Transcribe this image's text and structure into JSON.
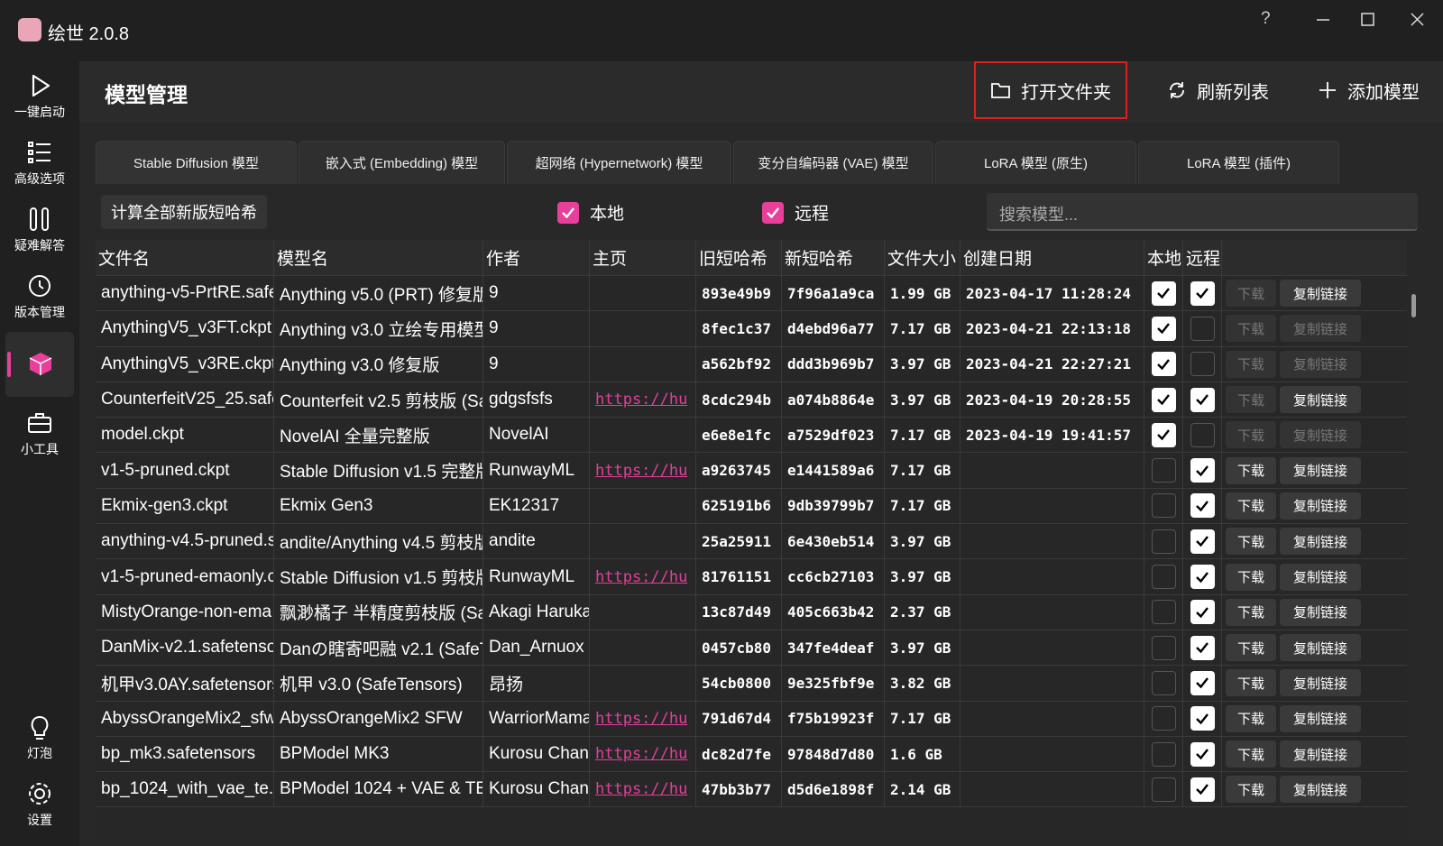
{
  "app": {
    "title": "绘世 2.0.8",
    "help": "?"
  },
  "sidebar": {
    "top": [
      "一键启动",
      "高级选项",
      "疑难解答",
      "版本管理"
    ],
    "tools": "小工具",
    "bottom": [
      "灯泡",
      "设置"
    ]
  },
  "header": {
    "title": "模型管理",
    "buttons": [
      "打开文件夹",
      "刷新列表",
      "添加模型"
    ]
  },
  "tabs": [
    "Stable Diffusion 模型",
    "嵌入式 (Embedding) 模型",
    "超网络 (Hypernetwork) 模型",
    "变分自编码器 (VAE) 模型",
    "LoRA 模型 (原生)",
    "LoRA 模型 (插件)"
  ],
  "selected_tab": 0,
  "toolbar": {
    "hash_button": "计算全部新版短哈希",
    "filters": [
      {
        "label": "本地",
        "checked": true
      },
      {
        "label": "远程",
        "checked": true
      }
    ],
    "search_placeholder": "搜索模型..."
  },
  "table": {
    "columns": [
      "文件名",
      "模型名",
      "作者",
      "主页",
      "旧短哈希",
      "新短哈希",
      "文件大小",
      "创建日期",
      "本地",
      "远程"
    ],
    "actions": [
      "下载",
      "复制链接"
    ],
    "rows": [
      {
        "file": "anything-v5-PrtRE.safe",
        "model": "Anything v5.0 (PRT) 修复版",
        "author": "9",
        "home": null,
        "old": "893e49b9",
        "new": "7f96a1a9ca",
        "size": "1.99 GB",
        "date": "2023-04-17 11:28:24",
        "local": true,
        "remote": true
      },
      {
        "file": "AnythingV5_v3FT.ckpt",
        "model": "Anything v3.0 立绘专用模型",
        "author": "9",
        "home": null,
        "old": "8fec1c37",
        "new": "d4ebd96a77",
        "size": "7.17 GB",
        "date": "2023-04-21 22:13:18",
        "local": true,
        "remote": false
      },
      {
        "file": "AnythingV5_v3RE.ckpt",
        "model": "Anything v3.0 修复版",
        "author": "9",
        "home": null,
        "old": "a562bf92",
        "new": "ddd3b969b7",
        "size": "3.97 GB",
        "date": "2023-04-21 22:27:21",
        "local": true,
        "remote": false
      },
      {
        "file": "CounterfeitV25_25.safe",
        "model": "Counterfeit v2.5 剪枝版 (Saf",
        "author": "gdgsfsfs",
        "home": "https://hu",
        "old": "8cdc294b",
        "new": "a074b8864e",
        "size": "3.97 GB",
        "date": "2023-04-19 20:28:55",
        "local": true,
        "remote": true
      },
      {
        "file": "model.ckpt",
        "model": "NovelAI 全量完整版",
        "author": "NovelAI",
        "home": null,
        "old": "e6e8e1fc",
        "new": "a7529df023",
        "size": "7.17 GB",
        "date": "2023-04-19 19:41:57",
        "local": true,
        "remote": false
      },
      {
        "file": "v1-5-pruned.ckpt",
        "model": "Stable Diffusion v1.5 完整版",
        "author": "RunwayML",
        "home": "https://hu",
        "old": "a9263745",
        "new": "e1441589a6",
        "size": "7.17 GB",
        "date": null,
        "local": false,
        "remote": true
      },
      {
        "file": "Ekmix-gen3.ckpt",
        "model": "Ekmix Gen3",
        "author": "EK12317",
        "home": null,
        "old": "625191b6",
        "new": "9db39799b7",
        "size": "7.17 GB",
        "date": null,
        "local": false,
        "remote": true
      },
      {
        "file": "anything-v4.5-pruned.s",
        "model": "andite/Anything v4.5 剪枝版",
        "author": "andite",
        "home": null,
        "old": "25a25911",
        "new": "6e430eb514",
        "size": "3.97 GB",
        "date": null,
        "local": false,
        "remote": true
      },
      {
        "file": "v1-5-pruned-emaonly.c",
        "model": "Stable Diffusion v1.5 剪枝版",
        "author": "RunwayML",
        "home": "https://hu",
        "old": "81761151",
        "new": "cc6cb27103",
        "size": "3.97 GB",
        "date": null,
        "local": false,
        "remote": true
      },
      {
        "file": "MistyOrange-non-ema",
        "model": "飘渺橘子 半精度剪枝版 (Safe",
        "author": "Akagi Haruka",
        "home": null,
        "old": "13c87d49",
        "new": "405c663b42",
        "size": "2.37 GB",
        "date": null,
        "local": false,
        "remote": true
      },
      {
        "file": "DanMix-v2.1.safetensor",
        "model": "Danの瞎寄吧融 v2.1 (SafeTe",
        "author": "Dan_Arnuox",
        "home": null,
        "old": "0457cb80",
        "new": "347fe4deaf",
        "size": "3.97 GB",
        "date": null,
        "local": false,
        "remote": true
      },
      {
        "file": "机甲v3.0AY.safetensors",
        "model": "机甲 v3.0 (SafeTensors)",
        "author": "昂扬",
        "home": null,
        "old": "54cb0800",
        "new": "9e325fbf9e",
        "size": "3.82 GB",
        "date": null,
        "local": false,
        "remote": true
      },
      {
        "file": "AbyssOrangeMix2_sfw.",
        "model": "AbyssOrangeMix2 SFW",
        "author": "WarriorMama",
        "home": "https://hu",
        "old": "791d67d4",
        "new": "f75b19923f",
        "size": "7.17 GB",
        "date": null,
        "local": false,
        "remote": true
      },
      {
        "file": "bp_mk3.safetensors",
        "model": "BPModel MK3",
        "author": "Kurosu Chan",
        "home": "https://hu",
        "old": "dc82d7fe",
        "new": "97848d7d80",
        "size": "1.6 GB",
        "date": null,
        "local": false,
        "remote": true
      },
      {
        "file": "bp_1024_with_vae_te.c",
        "model": "BPModel 1024 + VAE & TE",
        "author": "Kurosu Chan",
        "home": "https://hu",
        "old": "47bb3b77",
        "new": "d5d6e1898f",
        "size": "2.14 GB",
        "date": null,
        "local": false,
        "remote": true
      }
    ]
  }
}
